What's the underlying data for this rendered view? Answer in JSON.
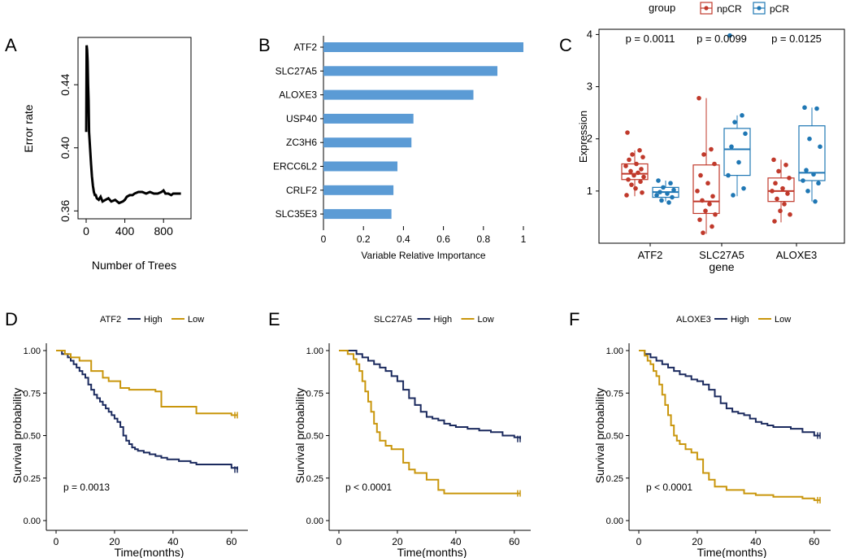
{
  "panels": {
    "a": "A",
    "b": "B",
    "c": "C",
    "d": "D",
    "e": "E",
    "f": "F"
  },
  "chart_data": [
    {
      "id": "A",
      "type": "line",
      "xlabel": "Number of Trees",
      "ylabel": "Error rate",
      "xlim": [
        0,
        1000
      ],
      "ylim": [
        0.355,
        0.47
      ],
      "xticks": [
        "0",
        "400",
        "800"
      ],
      "yticks": [
        "0.36",
        "0.40",
        "0.44"
      ],
      "x": [
        1,
        5,
        10,
        15,
        20,
        25,
        30,
        40,
        50,
        60,
        70,
        80,
        90,
        100,
        110,
        130,
        150,
        170,
        200,
        230,
        260,
        300,
        340,
        380,
        400,
        420,
        450,
        480,
        500,
        540,
        580,
        620,
        660,
        700,
        740,
        780,
        800,
        820,
        850,
        880,
        900,
        940,
        980
      ],
      "y": [
        0.41,
        0.465,
        0.462,
        0.455,
        0.44,
        0.43,
        0.41,
        0.4,
        0.39,
        0.382,
        0.376,
        0.372,
        0.37,
        0.37,
        0.368,
        0.367,
        0.369,
        0.366,
        0.367,
        0.368,
        0.366,
        0.367,
        0.365,
        0.366,
        0.367,
        0.369,
        0.37,
        0.37,
        0.371,
        0.372,
        0.372,
        0.371,
        0.372,
        0.371,
        0.371,
        0.372,
        0.373,
        0.371,
        0.371,
        0.37,
        0.371,
        0.371,
        0.371
      ]
    },
    {
      "id": "B",
      "type": "bar",
      "orientation": "horizontal",
      "xlabel": "Variable Relative Importance",
      "categories": [
        "ATF2",
        "SLC27A5",
        "ALOXE3",
        "USP40",
        "ZC3H6",
        "ERCC6L2",
        "CRLF2",
        "SLC35E3"
      ],
      "values": [
        1.0,
        0.87,
        0.75,
        0.45,
        0.44,
        0.37,
        0.35,
        0.34
      ],
      "xlim": [
        0,
        1
      ],
      "xticks": [
        "0",
        "0.2",
        "0.4",
        "0.6",
        "0.8",
        "1"
      ],
      "color": "#5b9bd5"
    },
    {
      "id": "C",
      "type": "boxplot",
      "xlabel": "gene",
      "ylabel": "Expression",
      "ylim": [
        0,
        4.1
      ],
      "yticks": [
        "1",
        "2",
        "3",
        "4"
      ],
      "legend": {
        "title": "group",
        "entries": [
          "npCR",
          "pCR"
        ],
        "colors": [
          "#c0392b",
          "#1f77b4"
        ],
        "placement": "top"
      },
      "genes": [
        "ATF2",
        "SLC27A5",
        "ALOXE3"
      ],
      "pvalues": [
        "p = 0.0011",
        "p = 0.0099",
        "p = 0.0125"
      ],
      "boxes": [
        {
          "gene": "ATF2",
          "group": "npCR",
          "min": 0.9,
          "q1": 1.22,
          "median": 1.33,
          "q3": 1.52,
          "max": 1.78
        },
        {
          "gene": "ATF2",
          "group": "pCR",
          "min": 0.8,
          "q1": 0.88,
          "median": 0.98,
          "q3": 1.07,
          "max": 1.2
        },
        {
          "gene": "SLC27A5",
          "group": "npCR",
          "min": 0.18,
          "q1": 0.57,
          "median": 0.8,
          "q3": 1.5,
          "max": 2.78
        },
        {
          "gene": "SLC27A5",
          "group": "pCR",
          "min": 0.9,
          "q1": 1.3,
          "median": 1.8,
          "q3": 2.2,
          "max": 2.45
        },
        {
          "gene": "ALOXE3",
          "group": "npCR",
          "min": 0.4,
          "q1": 0.8,
          "median": 1.0,
          "q3": 1.25,
          "max": 1.6
        },
        {
          "gene": "ALOXE3",
          "group": "pCR",
          "min": 0.8,
          "q1": 1.2,
          "median": 1.35,
          "q3": 2.25,
          "max": 2.6
        }
      ],
      "points": {
        "ATF2": {
          "npCR": [
            2.12,
            1.78,
            1.7,
            1.65,
            1.6,
            1.52,
            1.48,
            1.42,
            1.38,
            1.35,
            1.3,
            1.27,
            1.22,
            1.18,
            1.12,
            1.05,
            0.97,
            0.92
          ],
          "pCR": [
            1.2,
            1.15,
            1.07,
            1.02,
            0.98,
            0.95,
            0.92,
            0.88,
            0.82,
            0.78
          ]
        },
        "SLC27A5": {
          "npCR": [
            2.78,
            1.8,
            1.7,
            1.52,
            1.3,
            1.15,
            1.0,
            0.9,
            0.82,
            0.75,
            0.62,
            0.55,
            0.45,
            0.32,
            0.2
          ],
          "pCR": [
            3.98,
            2.45,
            2.32,
            2.1,
            1.85,
            1.55,
            1.3,
            1.05,
            0.92
          ]
        },
        "ALOXE3": {
          "npCR": [
            1.6,
            1.5,
            1.38,
            1.25,
            1.15,
            1.05,
            1.0,
            0.95,
            0.85,
            0.75,
            0.62,
            0.55,
            0.42
          ],
          "pCR": [
            2.6,
            2.58,
            2.0,
            1.85,
            1.4,
            1.32,
            1.2,
            1.15,
            1.0,
            0.8
          ]
        }
      }
    },
    {
      "id": "D",
      "type": "line",
      "subtype": "kaplan-meier",
      "legend_title": "ATF2",
      "legend": [
        "High",
        "Low"
      ],
      "colors": [
        "#1b2a5e",
        "#c9960c"
      ],
      "xlabel": "Time(months)",
      "ylabel": "Survival probability",
      "xlim": [
        0,
        62
      ],
      "ylim": [
        0,
        1
      ],
      "xticks": [
        "0",
        "20",
        "40",
        "60"
      ],
      "yticks": [
        "0.00",
        "0.25",
        "0.50",
        "0.75",
        "1.00"
      ],
      "pvalue": "p = 0.0013",
      "series": [
        {
          "name": "High",
          "x": [
            0,
            2,
            4,
            5,
            6,
            7,
            8,
            9,
            10,
            11,
            12,
            13,
            14,
            15,
            16,
            17,
            18,
            19,
            20,
            21,
            22,
            23,
            24,
            25,
            26,
            27,
            28,
            30,
            32,
            34,
            36,
            38,
            40,
            42,
            44,
            46,
            48,
            50,
            55,
            60,
            62
          ],
          "y": [
            1.0,
            0.98,
            0.96,
            0.94,
            0.92,
            0.9,
            0.88,
            0.86,
            0.84,
            0.8,
            0.77,
            0.74,
            0.72,
            0.7,
            0.68,
            0.66,
            0.64,
            0.62,
            0.6,
            0.58,
            0.55,
            0.5,
            0.47,
            0.45,
            0.43,
            0.42,
            0.41,
            0.4,
            0.39,
            0.38,
            0.37,
            0.36,
            0.36,
            0.35,
            0.35,
            0.34,
            0.33,
            0.33,
            0.33,
            0.31,
            0.3
          ]
        },
        {
          "name": "Low",
          "x": [
            0,
            3,
            5,
            8,
            12,
            16,
            18,
            22,
            25,
            30,
            34,
            36,
            40,
            48,
            60,
            62
          ],
          "y": [
            1.0,
            0.98,
            0.96,
            0.94,
            0.88,
            0.84,
            0.82,
            0.78,
            0.77,
            0.77,
            0.76,
            0.67,
            0.67,
            0.63,
            0.62,
            0.62
          ]
        }
      ]
    },
    {
      "id": "E",
      "type": "line",
      "subtype": "kaplan-meier",
      "legend_title": "SLC27A5",
      "legend": [
        "High",
        "Low"
      ],
      "colors": [
        "#1b2a5e",
        "#c9960c"
      ],
      "xlabel": "Time(months)",
      "ylabel": "Survival probability",
      "xlim": [
        0,
        62
      ],
      "ylim": [
        0,
        1
      ],
      "xticks": [
        "0",
        "20",
        "40",
        "60"
      ],
      "yticks": [
        "0.00",
        "0.25",
        "0.50",
        "0.75",
        "1.00"
      ],
      "pvalue": "p < 0.0001",
      "series": [
        {
          "name": "High",
          "x": [
            0,
            3,
            6,
            8,
            10,
            12,
            14,
            16,
            18,
            20,
            22,
            24,
            26,
            28,
            30,
            32,
            34,
            36,
            38,
            40,
            44,
            48,
            52,
            56,
            60,
            62
          ],
          "y": [
            1.0,
            1.0,
            0.98,
            0.96,
            0.94,
            0.92,
            0.9,
            0.88,
            0.85,
            0.82,
            0.77,
            0.72,
            0.68,
            0.64,
            0.61,
            0.6,
            0.59,
            0.57,
            0.56,
            0.55,
            0.54,
            0.53,
            0.52,
            0.5,
            0.49,
            0.48
          ]
        },
        {
          "name": "Low",
          "x": [
            0,
            3,
            5,
            6,
            7,
            8,
            9,
            10,
            11,
            12,
            13,
            14,
            16,
            18,
            20,
            22,
            24,
            26,
            30,
            34,
            36,
            40,
            50,
            60,
            62
          ],
          "y": [
            1.0,
            0.98,
            0.95,
            0.92,
            0.88,
            0.82,
            0.76,
            0.7,
            0.64,
            0.57,
            0.52,
            0.47,
            0.44,
            0.42,
            0.42,
            0.34,
            0.3,
            0.28,
            0.24,
            0.18,
            0.16,
            0.16,
            0.16,
            0.16,
            0.16
          ]
        }
      ]
    },
    {
      "id": "F",
      "type": "line",
      "subtype": "kaplan-meier",
      "legend_title": "ALOXE3",
      "legend": [
        "High",
        "Low"
      ],
      "colors": [
        "#1b2a5e",
        "#c9960c"
      ],
      "xlabel": "Time(months)",
      "ylabel": "Survival probability",
      "xlim": [
        0,
        62
      ],
      "ylim": [
        0,
        1
      ],
      "xticks": [
        "0",
        "20",
        "40",
        "60"
      ],
      "yticks": [
        "0.00",
        "0.25",
        "0.50",
        "0.75",
        "1.00"
      ],
      "pvalue": "p < 0.0001",
      "series": [
        {
          "name": "High",
          "x": [
            0,
            2,
            4,
            6,
            8,
            10,
            12,
            14,
            16,
            18,
            20,
            22,
            24,
            26,
            28,
            30,
            32,
            34,
            36,
            38,
            40,
            42,
            44,
            46,
            48,
            52,
            56,
            60,
            62
          ],
          "y": [
            1.0,
            0.98,
            0.96,
            0.94,
            0.92,
            0.9,
            0.88,
            0.86,
            0.85,
            0.83,
            0.82,
            0.8,
            0.77,
            0.73,
            0.69,
            0.66,
            0.64,
            0.63,
            0.62,
            0.6,
            0.58,
            0.57,
            0.56,
            0.55,
            0.55,
            0.54,
            0.52,
            0.5,
            0.5
          ]
        },
        {
          "name": "Low",
          "x": [
            0,
            2,
            3,
            4,
            5,
            6,
            7,
            8,
            9,
            10,
            11,
            12,
            13,
            14,
            16,
            18,
            20,
            22,
            24,
            26,
            30,
            36,
            40,
            46,
            50,
            56,
            60,
            62
          ],
          "y": [
            1.0,
            0.97,
            0.94,
            0.92,
            0.88,
            0.85,
            0.8,
            0.74,
            0.68,
            0.62,
            0.56,
            0.5,
            0.47,
            0.45,
            0.42,
            0.4,
            0.36,
            0.28,
            0.24,
            0.2,
            0.18,
            0.16,
            0.15,
            0.14,
            0.14,
            0.13,
            0.12,
            0.12
          ]
        }
      ]
    }
  ]
}
